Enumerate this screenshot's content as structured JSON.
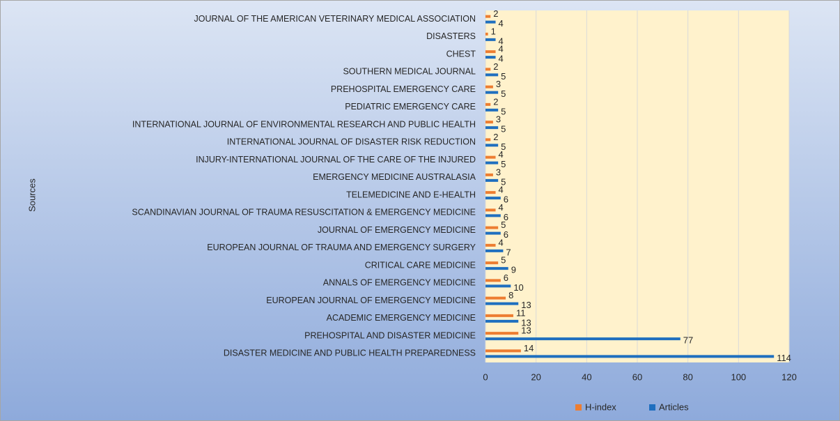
{
  "chart_data": {
    "type": "bar",
    "orientation": "horizontal",
    "y_axis_label": "Sources",
    "categories": [
      "JOURNAL OF THE AMERICAN VETERINARY MEDICAL ASSOCIATION",
      "DISASTERS",
      "CHEST",
      "SOUTHERN MEDICAL JOURNAL",
      "PREHOSPITAL EMERGENCY CARE",
      "PEDIATRIC EMERGENCY CARE",
      "INTERNATIONAL JOURNAL OF ENVIRONMENTAL RESEARCH AND PUBLIC HEALTH",
      "INTERNATIONAL JOURNAL OF DISASTER RISK REDUCTION",
      "INJURY-INTERNATIONAL JOURNAL OF THE CARE OF THE INJURED",
      "EMERGENCY MEDICINE AUSTRALASIA",
      "TELEMEDICINE AND E-HEALTH",
      "SCANDINAVIAN JOURNAL OF TRAUMA RESUSCITATION & EMERGENCY MEDICINE",
      "JOURNAL OF EMERGENCY MEDICINE",
      "EUROPEAN JOURNAL OF TRAUMA AND EMERGENCY SURGERY",
      "CRITICAL CARE MEDICINE",
      "ANNALS OF EMERGENCY MEDICINE",
      "EUROPEAN JOURNAL OF EMERGENCY MEDICINE",
      "ACADEMIC EMERGENCY MEDICINE",
      "PREHOSPITAL AND DISASTER MEDICINE",
      "DISASTER MEDICINE AND PUBLIC HEALTH PREPAREDNESS"
    ],
    "series": [
      {
        "name": "H-index",
        "color": "#ed7d31",
        "values": [
          2,
          1,
          4,
          2,
          3,
          2,
          3,
          2,
          4,
          3,
          4,
          4,
          5,
          4,
          5,
          6,
          8,
          11,
          13,
          14
        ]
      },
      {
        "name": "Articles",
        "color": "#1f6fbf",
        "values": [
          4,
          4,
          4,
          5,
          5,
          5,
          5,
          5,
          5,
          5,
          6,
          6,
          6,
          7,
          9,
          10,
          13,
          13,
          77,
          114
        ]
      }
    ],
    "xlim": [
      0,
      120
    ],
    "xticks": [
      0,
      20,
      40,
      60,
      80,
      100,
      120
    ],
    "grid": true,
    "legend": "bottom"
  }
}
